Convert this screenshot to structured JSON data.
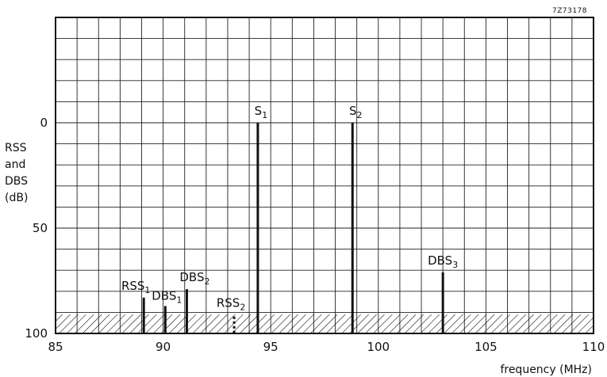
{
  "figure_id": "7Z73178",
  "chart_data": {
    "type": "bar",
    "xlabel": "frequency (MHz)",
    "ylabel_lines": [
      "RSS",
      "and",
      "DBS",
      "(dB)"
    ],
    "xlim": [
      85,
      110
    ],
    "ylim": [
      100,
      -50
    ],
    "y_inverted": true,
    "x_ticks": [
      85,
      90,
      95,
      100,
      105,
      110
    ],
    "y_ticks": [
      0,
      50,
      100
    ],
    "grid": true,
    "x_minor_step": 1,
    "y_minor_step": 10,
    "noise_floor": {
      "from": 91,
      "to": 100,
      "style": "hatched"
    },
    "signals": [
      {
        "base": "RSS",
        "sub": "1",
        "x": 89.1,
        "y": 83,
        "style": "solid"
      },
      {
        "base": "DBS",
        "sub": "1",
        "x": 90.1,
        "y": 87,
        "style": "solid"
      },
      {
        "base": "DBS",
        "sub": "2",
        "x": 91.1,
        "y": 79,
        "style": "solid"
      },
      {
        "base": "RSS",
        "sub": "2",
        "x": 93.3,
        "y": 92,
        "style": "dashed"
      },
      {
        "base": "S",
        "sub": "1",
        "x": 94.4,
        "y": 0,
        "style": "solid"
      },
      {
        "base": "S",
        "sub": "2",
        "x": 98.8,
        "y": 0,
        "style": "solid"
      },
      {
        "base": "DBS",
        "sub": "3",
        "x": 103.0,
        "y": 71,
        "style": "solid"
      }
    ]
  }
}
